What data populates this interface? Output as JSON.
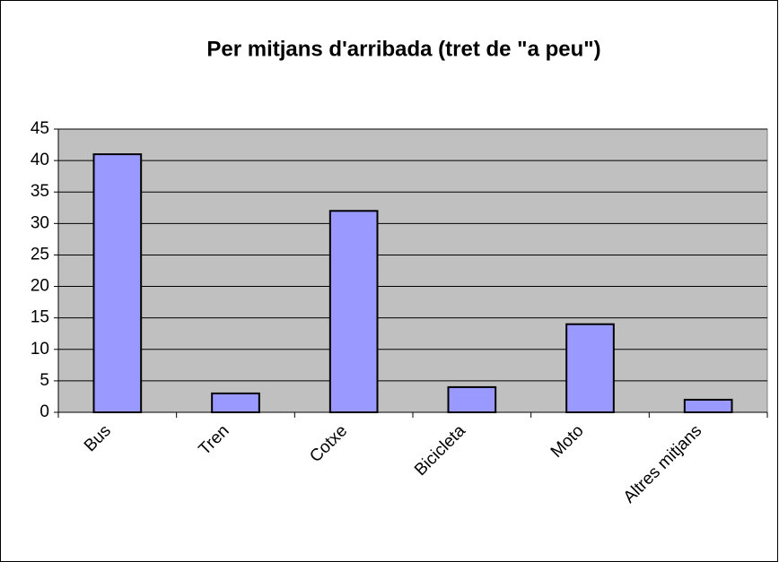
{
  "chart_data": {
    "type": "bar",
    "title": "Per mitjans d'arribada (tret de \"a peu\")",
    "categories": [
      "Bus",
      "Tren",
      "Cotxe",
      "Bicicleta",
      "Moto",
      "Altres mitjans"
    ],
    "values": [
      41,
      3,
      32,
      4,
      14,
      2
    ],
    "color": "#9999ff",
    "ylim": [
      0,
      45
    ],
    "yticks": [
      0,
      5,
      10,
      15,
      20,
      25,
      30,
      35,
      40,
      45
    ],
    "grid": true
  }
}
